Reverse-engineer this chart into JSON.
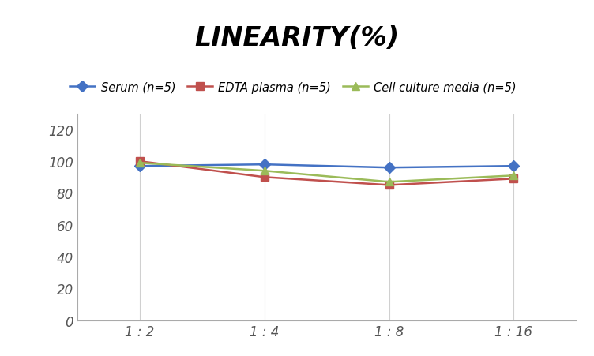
{
  "title": "LINEARITY(%)",
  "x_labels": [
    "1 : 2",
    "1 : 4",
    "1 : 8",
    "1 : 16"
  ],
  "x_positions": [
    0,
    1,
    2,
    3
  ],
  "series": [
    {
      "label": "Serum (n=5)",
      "values": [
        97,
        98,
        96,
        97
      ],
      "color": "#4472C4",
      "marker": "D",
      "linewidth": 1.8
    },
    {
      "label": "EDTA plasma (n=5)",
      "values": [
        100,
        90,
        85,
        89
      ],
      "color": "#C0504D",
      "marker": "s",
      "linewidth": 1.8
    },
    {
      "label": "Cell culture media (n=5)",
      "values": [
        99,
        94,
        87,
        91
      ],
      "color": "#9BBB59",
      "marker": "^",
      "linewidth": 1.8
    }
  ],
  "ylim": [
    0,
    130
  ],
  "yticks": [
    0,
    20,
    40,
    60,
    80,
    100,
    120
  ],
  "grid_color": "#D0D0D0",
  "background_color": "#FFFFFF",
  "title_fontsize": 24,
  "legend_fontsize": 10.5,
  "tick_fontsize": 12
}
